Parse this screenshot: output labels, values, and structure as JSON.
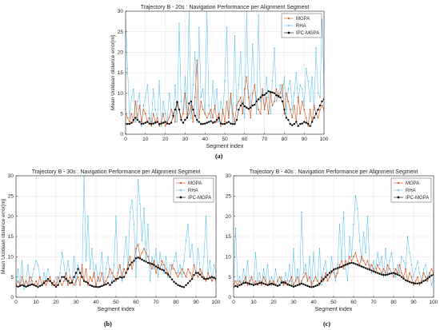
{
  "colors": {
    "mgpa": "#d95319",
    "rha": "#4dbeee",
    "ipc": "#000000"
  },
  "chart_data": [
    {
      "id": "a",
      "type": "line",
      "caption": "(a)",
      "title": "Trajectory B - 20s : Navigation Performance per Alignment Segment",
      "xlabel": "Segment index",
      "ylabel": "Mean Ucildean distance error[m]",
      "xlim": [
        0,
        100
      ],
      "ylim": [
        0,
        30
      ],
      "xticks": [
        0,
        10,
        20,
        30,
        40,
        50,
        60,
        70,
        80,
        90,
        100
      ],
      "yticks": [
        0,
        5,
        10,
        15,
        20,
        25,
        30
      ],
      "grid": true,
      "legend_position": "top-right",
      "legend": [
        "MGPA",
        "RHA",
        "IPC-MGPA"
      ],
      "series": [
        {
          "name": "MGPA",
          "values": [
            5,
            4,
            3,
            5,
            3,
            8,
            4,
            7,
            3,
            6,
            5,
            3,
            4,
            2,
            5,
            3,
            4,
            2,
            3,
            5,
            2,
            3,
            4,
            6,
            5,
            3,
            8,
            6,
            4,
            5,
            10,
            4,
            5,
            7,
            3,
            9,
            18,
            4,
            8,
            6,
            5,
            4,
            5,
            6,
            4,
            7,
            3,
            5,
            2,
            6,
            3,
            8,
            4,
            10,
            5,
            3,
            7,
            8,
            9,
            5,
            11,
            14,
            9,
            4,
            10,
            12,
            8,
            6,
            5,
            11,
            6,
            9,
            5,
            10,
            7,
            8,
            11,
            9,
            10,
            12,
            5,
            10,
            8,
            6,
            4,
            7,
            3,
            9,
            5,
            8,
            6,
            4,
            2,
            6,
            3,
            7,
            5,
            4,
            6,
            7,
            6
          ]
        },
        {
          "name": "RHA",
          "values": [
            28,
            16,
            4,
            9,
            11,
            3,
            8,
            10,
            2,
            7,
            9,
            12,
            5,
            3,
            11,
            6,
            4,
            13,
            2,
            8,
            5,
            3,
            10,
            6,
            4,
            12,
            3,
            27,
            8,
            5,
            14,
            6,
            30,
            4,
            12,
            20,
            3,
            26,
            9,
            11,
            5,
            30,
            7,
            4,
            13,
            6,
            11,
            3,
            8,
            5,
            13,
            26,
            5,
            9,
            3,
            24,
            6,
            12,
            20,
            8,
            4,
            30,
            10,
            7,
            22,
            12,
            5,
            29,
            8,
            11,
            6,
            14,
            9,
            5,
            13,
            21,
            8,
            10,
            12,
            9,
            14,
            5,
            11,
            13,
            6,
            10,
            15,
            8,
            12,
            11,
            7,
            16,
            13,
            8,
            14,
            6,
            21,
            10,
            9,
            28,
            12
          ]
        },
        {
          "name": "IPC-MGPA",
          "values": [
            2.5,
            2.5,
            2.5,
            2.8,
            3.5,
            4,
            3.5,
            3,
            2.5,
            2.6,
            2.8,
            3,
            2.6,
            2.5,
            2.6,
            2.8,
            3,
            2.5,
            2.6,
            2.8,
            3,
            2.6,
            2.5,
            2.8,
            4.5,
            6,
            7.8,
            6,
            3.5,
            2.8,
            3.5,
            4,
            7.5,
            8,
            6,
            4.5,
            3.5,
            3,
            2.5,
            2.5,
            2.6,
            2.8,
            3,
            3.2,
            2.8,
            3,
            3.5,
            4,
            2.6,
            2.5,
            2.5,
            2.8,
            3,
            2.6,
            2.5,
            2.5,
            3.5,
            6,
            7,
            7.5,
            6.8,
            6.5,
            6.2,
            6.5,
            7,
            7.2,
            8,
            8.5,
            9,
            9.5,
            9.6,
            10,
            10.5,
            10.3,
            10.2,
            10,
            9.5,
            9.3,
            9,
            8,
            6,
            4,
            3.5,
            2.5,
            2.2,
            2.5,
            3,
            2,
            2.5,
            2.6,
            3,
            2.8,
            2.5,
            2,
            3,
            4,
            5,
            6,
            7,
            8,
            8.5
          ]
        }
      ]
    },
    {
      "id": "b",
      "type": "line",
      "caption": "(b)",
      "title": "Trajectory B - 30s : Navigation Performance per Alignment Segment",
      "xlabel": "Segment index",
      "ylabel": "Mean Ucildean distance error[m]",
      "xlim": [
        0,
        100
      ],
      "ylim": [
        0,
        30
      ],
      "xticks": [
        0,
        10,
        20,
        30,
        40,
        50,
        60,
        70,
        80,
        90,
        100
      ],
      "yticks": [
        0,
        5,
        10,
        15,
        20,
        25,
        30
      ],
      "grid": true,
      "legend_position": "top-right",
      "legend": [
        "MGPA",
        "RHA",
        "IPC-MGPA"
      ],
      "series": [
        {
          "name": "MGPA",
          "values": [
            3,
            4,
            3,
            5,
            3,
            4,
            3,
            5,
            4,
            3,
            4,
            3,
            5,
            3,
            4,
            3,
            4,
            5,
            3,
            4,
            3,
            5,
            4,
            3,
            4,
            6,
            3,
            5,
            4,
            3,
            4,
            5,
            3,
            8,
            4,
            7,
            3,
            5,
            4,
            6,
            3,
            5,
            4,
            6,
            3,
            4,
            5,
            7,
            6,
            5,
            4,
            6,
            8,
            5,
            7,
            6,
            8,
            10,
            7,
            9,
            12,
            13,
            10,
            11,
            12,
            11,
            10,
            8,
            7,
            9,
            6,
            8,
            7,
            9,
            8,
            7,
            6,
            5,
            8,
            7,
            6,
            5,
            6,
            7,
            6,
            5,
            7,
            6,
            5,
            8,
            6,
            5,
            7,
            6,
            5,
            4,
            6,
            5,
            4,
            5,
            4
          ]
        },
        {
          "name": "RHA",
          "values": [
            3,
            7,
            3,
            9,
            2,
            4,
            8,
            3,
            5,
            7,
            9,
            8,
            5,
            3,
            6,
            4,
            7,
            5,
            3,
            4,
            5,
            3,
            6,
            11,
            8,
            4,
            9,
            5,
            4,
            10,
            3,
            8,
            6,
            5,
            30,
            9,
            20,
            7,
            12,
            5,
            8,
            4,
            6,
            11,
            3,
            7,
            10,
            5,
            4,
            8,
            20,
            6,
            8,
            4,
            10,
            15,
            7,
            21,
            24,
            18,
            5,
            29,
            23,
            14,
            22,
            9,
            18,
            4,
            10,
            7,
            12,
            5,
            11,
            8,
            6,
            10,
            5,
            8,
            7,
            9,
            11,
            6,
            8,
            5,
            9,
            14,
            18,
            10,
            13,
            8,
            6,
            12,
            7,
            5,
            10,
            20,
            6,
            9,
            4,
            8,
            6
          ]
        },
        {
          "name": "IPC-MGPA",
          "values": [
            2.8,
            2.6,
            2.8,
            3,
            2.8,
            2.6,
            2.8,
            3,
            3.2,
            3,
            2.8,
            2.5,
            2.8,
            3,
            3.5,
            4,
            4.5,
            4,
            3.5,
            3,
            2.6,
            3,
            4,
            5,
            5,
            4.5,
            4,
            3.5,
            3.6,
            5,
            6,
            7,
            6,
            5,
            4,
            3.8,
            3.5,
            3,
            2.8,
            2.6,
            2.6,
            2.5,
            2.6,
            2.8,
            3,
            3.2,
            3.5,
            3,
            3.6,
            4,
            4.5,
            4.6,
            5,
            4.8,
            5,
            6,
            7,
            8,
            8.6,
            9,
            9.6,
            9.8,
            9.6,
            9.3,
            9,
            8.8,
            8.5,
            8.4,
            8.2,
            8,
            7.6,
            7.3,
            7,
            6.8,
            6.6,
            6,
            5.6,
            5,
            4.4,
            3.8,
            3.4,
            3,
            2.8,
            2.6,
            2.5,
            3,
            3.5,
            4,
            4.5,
            5.5,
            6,
            6,
            5.6,
            5,
            4.6,
            4.5,
            4.6,
            4.8,
            5,
            4.8,
            4.6
          ]
        }
      ]
    },
    {
      "id": "c",
      "type": "line",
      "caption": "(c)",
      "title": "Trajectory B - 40s : Navigation Performance per Alignment Segment",
      "xlabel": "Segment index",
      "ylabel": "",
      "xlim": [
        0,
        100
      ],
      "ylim": [
        0,
        30
      ],
      "xticks": [
        0,
        10,
        20,
        30,
        40,
        50,
        60,
        70,
        80,
        90,
        100
      ],
      "yticks": [
        0,
        5,
        10,
        15,
        20,
        25,
        30
      ],
      "grid": true,
      "legend_position": "top-right",
      "legend": [
        "MGPA",
        "RHA",
        "IPC-MGPA"
      ],
      "series": [
        {
          "name": "MGPA",
          "values": [
            3,
            4,
            3,
            4,
            3,
            4,
            5,
            3,
            4,
            5,
            3,
            4,
            3,
            4,
            3,
            5,
            4,
            3,
            4,
            3,
            4,
            3,
            4,
            5,
            4,
            3,
            4,
            3,
            4,
            5,
            3,
            4,
            5,
            3,
            4,
            5,
            6,
            4,
            5,
            3,
            4,
            5,
            4,
            3,
            5,
            4,
            6,
            4,
            5,
            6,
            7,
            5,
            6,
            8,
            9,
            7,
            9,
            8,
            10,
            9,
            10,
            11,
            9,
            8,
            10,
            9,
            8,
            9,
            7,
            8,
            7,
            6,
            8,
            7,
            6,
            7,
            6,
            8,
            7,
            6,
            5,
            7,
            6,
            8,
            6,
            5,
            7,
            4,
            6,
            5,
            3,
            4,
            5,
            3,
            4,
            6,
            5,
            4,
            6,
            7,
            6
          ]
        },
        {
          "name": "RHA",
          "values": [
            3,
            17,
            4,
            5,
            3,
            7,
            4,
            9,
            3,
            5,
            3,
            11,
            4,
            6,
            3,
            7,
            4,
            8,
            3,
            5,
            3,
            7,
            4,
            3,
            5,
            3,
            6,
            4,
            8,
            3,
            12,
            4,
            7,
            3,
            21,
            6,
            8,
            4,
            10,
            3,
            11,
            5,
            4,
            12,
            3,
            7,
            9,
            4,
            5,
            10,
            6,
            4,
            8,
            18,
            9,
            21,
            7,
            4,
            15,
            10,
            18,
            25,
            22,
            14,
            9,
            16,
            11,
            20,
            8,
            6,
            9,
            7,
            11,
            8,
            10,
            5,
            12,
            6,
            9,
            11,
            7,
            5,
            8,
            6,
            10,
            9,
            7,
            15,
            11,
            8,
            5,
            7,
            9,
            6,
            4,
            7,
            8,
            5,
            6,
            3,
            5
          ]
        },
        {
          "name": "IPC-MGPA",
          "values": [
            2.5,
            2.8,
            2.6,
            3,
            3.2,
            3.5,
            3.6,
            3.5,
            3.3,
            3.2,
            3,
            3.2,
            3.3,
            3.5,
            3.6,
            3.4,
            3.2,
            3,
            3.2,
            3.4,
            3.2,
            3,
            2.8,
            3,
            3.6,
            3.7,
            3.5,
            3.2,
            3,
            2.8,
            2.6,
            2.8,
            3,
            3.2,
            3.4,
            3.2,
            3,
            2.8,
            2.6,
            2.5,
            2.6,
            2.8,
            3,
            3.4,
            4,
            4.5,
            5,
            5.5,
            6,
            6.4,
            6.8,
            7,
            7.2,
            7.4,
            7.5,
            7.8,
            8,
            8.2,
            8.4,
            8.5,
            8.4,
            8.2,
            8,
            7.8,
            7.6,
            7.4,
            7.2,
            7,
            6.8,
            6.6,
            6.4,
            6.2,
            6,
            5.8,
            5.6,
            5.5,
            5.5,
            5.6,
            5.8,
            5.9,
            6,
            5.8,
            5.6,
            5.4,
            5,
            4.6,
            4.2,
            4,
            3.8,
            3.6,
            3.5,
            3.4,
            3.4,
            3.5,
            3.6,
            4,
            4.2,
            4.6,
            5,
            5.4,
            5.6
          ]
        }
      ]
    }
  ]
}
